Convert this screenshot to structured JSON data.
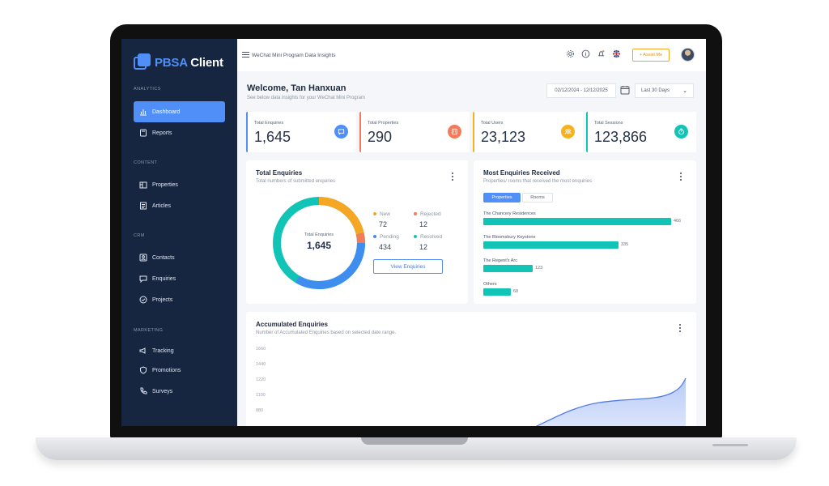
{
  "app": {
    "logo_prefix": "PBSA",
    "logo_suffix": " Client",
    "topbar_title": "WeChat Mini Program Data Insights",
    "assist_label": "+ Assist Me"
  },
  "sidebar": {
    "sections": [
      {
        "title": "ANALYTICS",
        "items": [
          {
            "label": "Dashboard",
            "icon": "bar-chart-icon",
            "active": true
          },
          {
            "label": "Reports",
            "icon": "report-icon"
          }
        ]
      },
      {
        "title": "CONTENT",
        "items": [
          {
            "label": "Properties",
            "icon": "building-icon"
          },
          {
            "label": "Articles",
            "icon": "article-icon"
          }
        ]
      },
      {
        "title": "CRM",
        "items": [
          {
            "label": "Contacts",
            "icon": "contact-icon"
          },
          {
            "label": "Enquiries",
            "icon": "chat-icon"
          },
          {
            "label": "Projects",
            "icon": "check-circle-icon"
          }
        ]
      },
      {
        "title": "MARKETING",
        "items": [
          {
            "label": "Tracking",
            "icon": "megaphone-icon"
          },
          {
            "label": "Promotions",
            "icon": "shield-icon"
          },
          {
            "label": "Surveys",
            "icon": "phone-icon"
          }
        ]
      }
    ]
  },
  "header": {
    "welcome": "Welcome, Tan Hanxuan",
    "subtitle": "See below data insights for your WeChat Mini Program",
    "date_range": "02/12/2024 - 12/12/2025",
    "range_option": "Last 30 Days"
  },
  "stats": [
    {
      "label": "Total Enquiries",
      "value": "1,645",
      "color": "#4f8ff7"
    },
    {
      "label": "Total Properties",
      "value": "290",
      "color": "#f47a5a"
    },
    {
      "label": "Total Users",
      "value": "23,123",
      "color": "#f5b21e"
    },
    {
      "label": "Total Sessions",
      "value": "123,866",
      "color": "#12c4b5"
    }
  ],
  "enquiries": {
    "title": "Total Enquiries",
    "subtitle": "Total numbers of submitted enquiries",
    "center_label": "Total Enquiries",
    "center_value": "1,645",
    "legend": [
      {
        "label": "New",
        "value": "72",
        "color": "#f5a623"
      },
      {
        "label": "Rejected",
        "value": "12",
        "color": "#f47a5a"
      },
      {
        "label": "Pending",
        "value": "434",
        "color": "#3e8ef0"
      },
      {
        "label": "Resolved",
        "value": "12",
        "color": "#12c4b5"
      }
    ],
    "button": "View Enquiries"
  },
  "most_enquiries": {
    "title": "Most Enquiries Received",
    "subtitle": "Properties/ rooms that received the most enquiries",
    "tabs": [
      "Properties",
      "Rooms"
    ],
    "chart_data": {
      "type": "bar",
      "categories": [
        "The Chancery Residences",
        "The Bloomsbury Keystone",
        "The Regent's Arc",
        "Others"
      ],
      "values": [
        466,
        335,
        123,
        68
      ]
    }
  },
  "accumulated": {
    "title": "Accumulated Enquiries",
    "subtitle": "Number of Accumulated Enquiries based on selected date range.",
    "chart_data": {
      "type": "area",
      "yticks": [
        "1660",
        "1440",
        "1220",
        "1100",
        "880"
      ]
    }
  }
}
